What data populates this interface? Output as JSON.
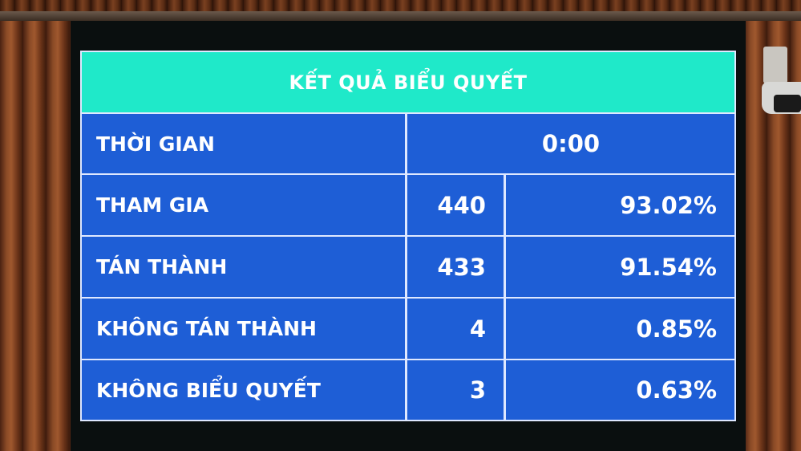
{
  "board": {
    "title": "KẾT QUẢ BIỂU QUYẾT",
    "time_label": "THỜI GIAN",
    "time_value": "0:00",
    "rows": [
      {
        "label": "THAM GIA",
        "count": "440",
        "percent": "93.02%"
      },
      {
        "label": "TÁN THÀNH",
        "count": "433",
        "percent": "91.54%"
      },
      {
        "label": "KHÔNG TÁN THÀNH",
        "count": "4",
        "percent": "0.85%"
      },
      {
        "label": "KHÔNG BIỂU QUYẾT",
        "count": "3",
        "percent": "0.63%"
      }
    ]
  },
  "colors": {
    "header": "#1fe9c9",
    "cells": "#1e5ed6",
    "text": "#ffffff"
  }
}
